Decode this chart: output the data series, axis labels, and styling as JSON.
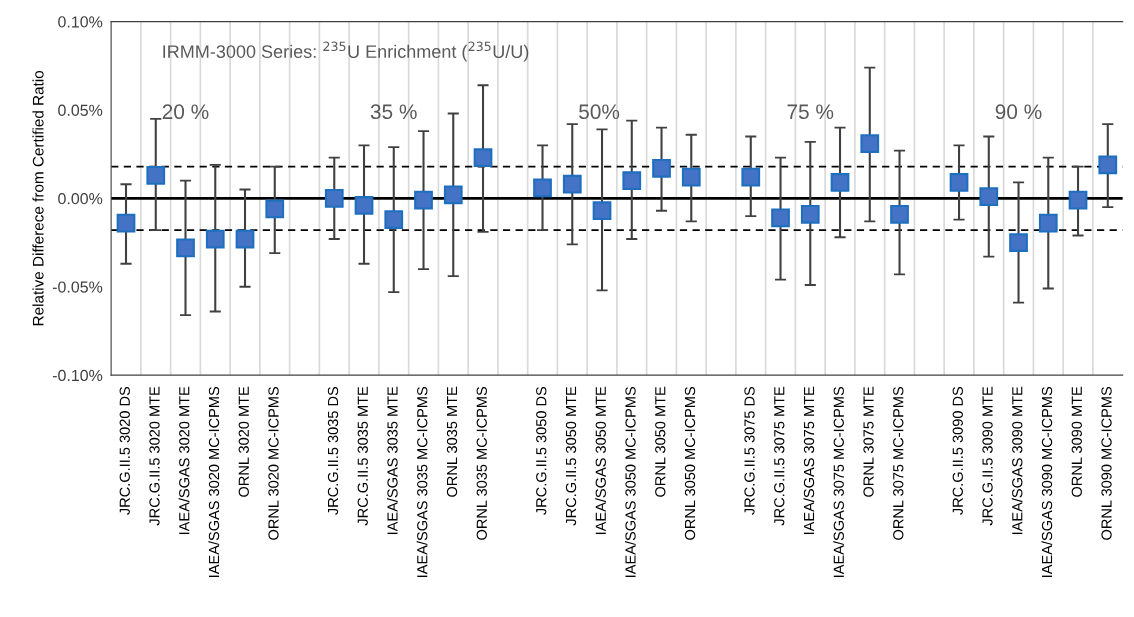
{
  "chart_data": {
    "type": "scatter",
    "ylabel": "Relative Differece from Certified Ratio",
    "categories": [
      "JRC.G.II.5 3020 DS",
      "JRC.G.II.5 3020 MTE",
      "IAEA/SGAS 3020 MTE",
      "IAEA/SGAS 3020 MC-ICPMS",
      "ORNL 3020 MTE",
      "ORNL 3020 MC-ICPMS",
      null,
      "JRC.G.II.5 3035 DS",
      "JRC.G.II.5 3035 MTE",
      "IAEA/SGAS 3035 MTE",
      "IAEA/SGAS 3035 MC-ICPMS",
      "ORNL 3035 MTE",
      "ORNL 3035 MC-ICPMS",
      null,
      "JRC.G.II.5 3050 DS",
      "JRC.G.II.5 3050 MTE",
      "IAEA/SGAS 3050 MTE",
      "IAEA/SGAS 3050 MC-ICPMS",
      "ORNL 3050 MTE",
      "ORNL 3050 MC-ICPMS",
      null,
      "JRC.G.II.5 3075 DS",
      "JRC.G.II.5 3075 MTE",
      "IAEA/SGAS 3075 MTE",
      "IAEA/SGAS 3075 MC-ICPMS",
      "ORNL 3075 MTE",
      "ORNL 3075 MC-ICPMS",
      null,
      "JRC.G.II.5 3090 DS",
      "JRC.G.II.5 3090 MTE",
      "IAEA/SGAS 3090 MTE",
      "IAEA/SGAS 3090 MC-ICPMS",
      "ORNL 3090 MTE",
      "ORNL 3090 MC-ICPMS"
    ],
    "series": [
      {
        "color": "#4472c4",
        "values": [
          -0.014,
          0.013,
          -0.028,
          -0.023,
          -0.023,
          -0.006,
          null,
          0.0,
          -0.004,
          -0.012,
          -0.001,
          0.002,
          0.023,
          null,
          0.006,
          0.008,
          -0.007,
          0.01,
          0.017,
          0.012,
          null,
          0.012,
          -0.011,
          -0.009,
          0.009,
          0.031,
          -0.009,
          null,
          0.009,
          0.001,
          -0.025,
          -0.014,
          -0.001,
          0.019
        ],
        "errors": [
          [
            -0.037,
            0.008
          ],
          [
            -0.018,
            0.045
          ],
          [
            -0.066,
            0.01
          ],
          [
            -0.064,
            0.019
          ],
          [
            -0.05,
            0.005
          ],
          [
            -0.031,
            0.018
          ],
          null,
          [
            -0.023,
            0.023
          ],
          [
            -0.037,
            0.03
          ],
          [
            -0.053,
            0.029
          ],
          [
            -0.04,
            0.038
          ],
          [
            -0.044,
            0.048
          ],
          [
            -0.019,
            0.064
          ],
          null,
          [
            -0.018,
            0.03
          ],
          [
            -0.026,
            0.042
          ],
          [
            -0.052,
            0.039
          ],
          [
            -0.023,
            0.044
          ],
          [
            -0.007,
            0.04
          ],
          [
            -0.013,
            0.036
          ],
          null,
          [
            -0.01,
            0.035
          ],
          [
            -0.046,
            0.023
          ],
          [
            -0.049,
            0.032
          ],
          [
            -0.022,
            0.04
          ],
          [
            -0.013,
            0.074
          ],
          [
            -0.043,
            0.027
          ],
          null,
          [
            -0.012,
            0.03
          ],
          [
            -0.033,
            0.035
          ],
          [
            -0.059,
            0.009
          ],
          [
            -0.051,
            0.023
          ],
          [
            -0.021,
            0.018
          ],
          [
            -0.005,
            0.042
          ]
        ]
      }
    ],
    "marker": "square",
    "ylim": [
      -0.1,
      0.1
    ],
    "yticks": [
      {
        "value": -0.1,
        "label": "-0.10%"
      },
      {
        "value": -0.05,
        "label": "-0.05%"
      },
      {
        "value": 0,
        "label": "0.00%"
      },
      {
        "value": 0.05,
        "label": "0.05%"
      },
      {
        "value": 0.1,
        "label": "0.10%"
      }
    ],
    "grid": "x",
    "ref_lines": [
      {
        "axis": "y",
        "value": 0,
        "color": "#000000",
        "line_style": "solid"
      },
      {
        "axis": "y",
        "value": 0.018,
        "color": "#000000",
        "line_style": "dashed"
      },
      {
        "axis": "y",
        "value": -0.018,
        "color": "#000000",
        "line_style": "dashed"
      }
    ],
    "annotations": [
      "IRMM-3000 Series: $^{235}$U Enrichment ($^{235}$U/U)",
      "20 %",
      "35 %",
      "50%",
      "75 %",
      "90 %"
    ]
  }
}
